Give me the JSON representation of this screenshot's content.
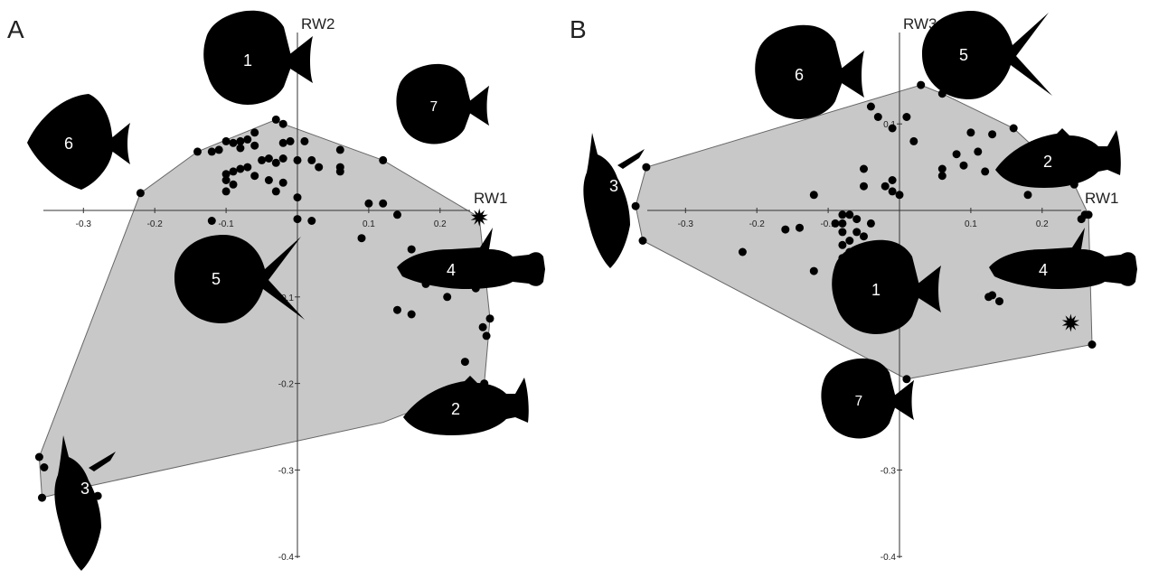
{
  "colors": {
    "hull": "#c8c8c8",
    "hull_stroke": "#666666",
    "points": "#000000",
    "axis": "#333333",
    "fish": "#000000",
    "fish_label": "#ffffff"
  },
  "chart_data": [
    {
      "type": "scatter",
      "panel": "A",
      "xlabel": "RW1",
      "ylabel": "RW2",
      "xticks": [
        "-0.3",
        "-0.2",
        "-0.1",
        "0.1",
        "0.2"
      ],
      "yticks": [
        "-0.1",
        "-0.2",
        "-0.3",
        "-0.4"
      ],
      "xlim": [
        -0.37,
        0.32
      ],
      "ylim": [
        -0.41,
        0.13
      ],
      "grid": false,
      "hull": [
        [
          -0.03,
          0.105
        ],
        [
          -0.02,
          0.1
        ],
        [
          0.12,
          0.058
        ],
        [
          0.255,
          -0.008
        ],
        [
          0.27,
          -0.125
        ],
        [
          0.262,
          -0.2
        ],
        [
          0.12,
          -0.245
        ],
        [
          -0.3,
          -0.32
        ],
        [
          -0.358,
          -0.332
        ],
        [
          -0.362,
          -0.285
        ],
        [
          -0.22,
          0.02
        ],
        [
          -0.14,
          0.068
        ]
      ],
      "points": [
        [
          -0.03,
          0.105
        ],
        [
          -0.02,
          0.1
        ],
        [
          -0.06,
          0.09
        ],
        [
          -0.08,
          0.08
        ],
        [
          -0.07,
          0.082
        ],
        [
          -0.1,
          0.08
        ],
        [
          -0.09,
          0.078
        ],
        [
          -0.11,
          0.07
        ],
        [
          -0.12,
          0.068
        ],
        [
          -0.14,
          0.068
        ],
        [
          -0.08,
          0.072
        ],
        [
          -0.06,
          0.075
        ],
        [
          -0.01,
          0.08
        ],
        [
          -0.02,
          0.078
        ],
        [
          0.01,
          0.08
        ],
        [
          -0.04,
          0.06
        ],
        [
          -0.03,
          0.055
        ],
        [
          -0.02,
          0.06
        ],
        [
          0.0,
          0.058
        ],
        [
          0.02,
          0.058
        ],
        [
          0.03,
          0.05
        ],
        [
          -0.05,
          0.058
        ],
        [
          -0.07,
          0.05
        ],
        [
          -0.08,
          0.048
        ],
        [
          -0.09,
          0.045
        ],
        [
          -0.1,
          0.042
        ],
        [
          -0.1,
          0.035
        ],
        [
          -0.09,
          0.03
        ],
        [
          -0.1,
          0.022
        ],
        [
          -0.06,
          0.04
        ],
        [
          -0.04,
          0.035
        ],
        [
          -0.02,
          0.032
        ],
        [
          0.06,
          0.07
        ],
        [
          0.06,
          0.05
        ],
        [
          0.06,
          0.045
        ],
        [
          -0.03,
          0.022
        ],
        [
          0.0,
          0.015
        ],
        [
          0.12,
          0.058
        ],
        [
          -0.22,
          0.02
        ],
        [
          0.1,
          0.008
        ],
        [
          0.12,
          0.008
        ],
        [
          0.0,
          -0.01
        ],
        [
          0.02,
          -0.012
        ],
        [
          0.14,
          -0.005
        ],
        [
          -0.12,
          -0.012
        ],
        [
          0.09,
          -0.032
        ],
        [
          0.16,
          -0.045
        ],
        [
          0.15,
          -0.065
        ],
        [
          0.19,
          -0.06
        ],
        [
          0.24,
          -0.07
        ],
        [
          0.18,
          -0.085
        ],
        [
          0.21,
          -0.1
        ],
        [
          0.25,
          -0.09
        ],
        [
          0.14,
          -0.115
        ],
        [
          0.16,
          -0.12
        ],
        [
          0.27,
          -0.125
        ],
        [
          0.26,
          -0.135
        ],
        [
          0.265,
          -0.145
        ],
        [
          0.235,
          -0.175
        ],
        [
          0.262,
          -0.2
        ],
        [
          -0.362,
          -0.285
        ],
        [
          -0.355,
          -0.297
        ],
        [
          -0.358,
          -0.332
        ],
        [
          -0.3,
          -0.32
        ],
        [
          -0.28,
          -0.33
        ]
      ],
      "star": [
        0.255,
        -0.008
      ],
      "fish_labels": [
        "1",
        "2",
        "3",
        "4",
        "5",
        "6",
        "7"
      ]
    },
    {
      "type": "scatter",
      "panel": "B",
      "xlabel": "RW1",
      "ylabel": "RW3",
      "xticks": [
        "-0.3",
        "-0.2",
        "-0.1",
        "0.1",
        "0.2"
      ],
      "yticks": [
        "0.1",
        "-0.3",
        "-0.4"
      ],
      "xlim": [
        -0.37,
        0.32
      ],
      "ylim": [
        -0.41,
        0.15
      ],
      "grid": false,
      "hull": [
        [
          0.03,
          0.145
        ],
        [
          0.06,
          0.135
        ],
        [
          0.16,
          0.095
        ],
        [
          0.245,
          0.03
        ],
        [
          0.265,
          -0.005
        ],
        [
          0.27,
          -0.155
        ],
        [
          0.01,
          -0.195
        ],
        [
          -0.36,
          -0.035
        ],
        [
          -0.37,
          0.005
        ],
        [
          -0.355,
          0.05
        ]
      ],
      "points": [
        [
          0.03,
          0.145
        ],
        [
          0.06,
          0.135
        ],
        [
          -0.04,
          0.12
        ],
        [
          -0.03,
          0.108
        ],
        [
          0.01,
          0.108
        ],
        [
          0.16,
          0.095
        ],
        [
          -0.01,
          0.095
        ],
        [
          0.1,
          0.09
        ],
        [
          0.13,
          0.088
        ],
        [
          0.02,
          0.08
        ],
        [
          0.11,
          0.068
        ],
        [
          0.08,
          0.065
        ],
        [
          0.09,
          0.052
        ],
        [
          0.06,
          0.048
        ],
        [
          0.12,
          0.045
        ],
        [
          0.06,
          0.04
        ],
        [
          -0.05,
          0.048
        ],
        [
          -0.01,
          0.035
        ],
        [
          -0.05,
          0.028
        ],
        [
          -0.02,
          0.028
        ],
        [
          -0.01,
          0.022
        ],
        [
          0.0,
          0.018
        ],
        [
          0.18,
          0.018
        ],
        [
          -0.12,
          0.018
        ],
        [
          0.245,
          0.03
        ],
        [
          -0.355,
          0.05
        ],
        [
          -0.37,
          0.005
        ],
        [
          -0.36,
          -0.035
        ],
        [
          -0.08,
          -0.005
        ],
        [
          -0.07,
          -0.005
        ],
        [
          -0.06,
          -0.01
        ],
        [
          -0.08,
          -0.015
        ],
        [
          -0.09,
          -0.015
        ],
        [
          -0.04,
          -0.015
        ],
        [
          -0.16,
          -0.022
        ],
        [
          -0.14,
          -0.02
        ],
        [
          -0.08,
          -0.025
        ],
        [
          -0.06,
          -0.025
        ],
        [
          -0.05,
          -0.03
        ],
        [
          -0.07,
          -0.035
        ],
        [
          -0.08,
          -0.04
        ],
        [
          -0.07,
          -0.048
        ],
        [
          -0.03,
          -0.042
        ],
        [
          -0.02,
          -0.042
        ],
        [
          -0.06,
          -0.052
        ],
        [
          -0.08,
          -0.055
        ],
        [
          -0.22,
          -0.048
        ],
        [
          -0.12,
          -0.07
        ],
        [
          -0.08,
          -0.075
        ],
        [
          0.26,
          -0.005
        ],
        [
          0.255,
          -0.01
        ],
        [
          0.265,
          -0.005
        ],
        [
          0.125,
          -0.1
        ],
        [
          0.14,
          -0.105
        ],
        [
          0.13,
          -0.098
        ],
        [
          0.27,
          -0.155
        ],
        [
          0.01,
          -0.195
        ],
        [
          -0.04,
          -0.125
        ]
      ],
      "star": [
        0.24,
        -0.13
      ],
      "fish_labels": [
        "1",
        "2",
        "3",
        "4",
        "5",
        "6",
        "7"
      ]
    }
  ]
}
